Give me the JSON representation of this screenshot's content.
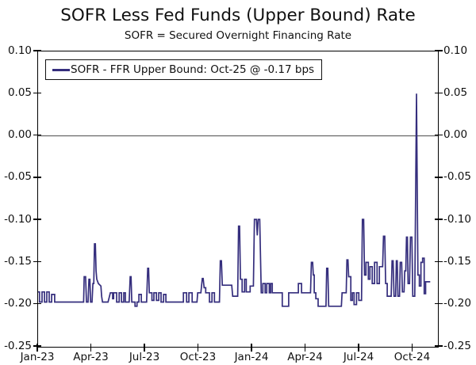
{
  "title": "SOFR Less Fed Funds (Upper Bound) Rate",
  "subtitle": "SOFR = Secured Overnight Financing Rate",
  "legend": {
    "label": "SOFR - FFR Upper Bound: Oct-25 @ -0.17 bps"
  },
  "colors": {
    "line": "#352e7d",
    "axis": "#000000",
    "zero_line": "#4a4a4a",
    "text": "#111111",
    "background": "#ffffff"
  },
  "chart_data": {
    "type": "line",
    "title": "SOFR Less Fed Funds (Upper Bound) Rate",
    "subtitle": "SOFR = Secured Overnight Financing Rate",
    "xlabel": "",
    "ylabel": "",
    "x_unit": "months since Jan-2023 (0 = Jan-23 tick)",
    "y_unit": "percentage points (SOFR minus FFR upper bound)",
    "xlim": [
      0,
      22.4
    ],
    "ylim": [
      -0.25,
      0.1
    ],
    "grid": "single horizontal gridline at 0.00 only",
    "legend_position": "top-left inside plot",
    "dual_y_axis": true,
    "xticks": [
      {
        "pos": 0,
        "label": "Jan-23"
      },
      {
        "pos": 3,
        "label": "Apr-23"
      },
      {
        "pos": 6,
        "label": "Jul-23"
      },
      {
        "pos": 9,
        "label": "Oct-23"
      },
      {
        "pos": 12,
        "label": "Jan-24"
      },
      {
        "pos": 15,
        "label": "Apr-24"
      },
      {
        "pos": 18,
        "label": "Jul-24"
      },
      {
        "pos": 21,
        "label": "Oct-24"
      }
    ],
    "yticks": [
      {
        "value": 0.1,
        "label": "0.10"
      },
      {
        "value": 0.05,
        "label": "0.05"
      },
      {
        "value": 0.0,
        "label": "0.00"
      },
      {
        "value": -0.05,
        "label": "-0.05"
      },
      {
        "value": -0.1,
        "label": "-0.10"
      },
      {
        "value": -0.15,
        "label": "-0.15"
      },
      {
        "value": -0.2,
        "label": "-0.20"
      },
      {
        "value": -0.25,
        "label": "-0.25"
      }
    ],
    "series": [
      {
        "name": "SOFR - FFR Upper Bound",
        "last_point_label": "Oct-25 @ -0.17 bps",
        "points": [
          [
            0.0,
            -0.185
          ],
          [
            0.08,
            -0.185
          ],
          [
            0.08,
            -0.197
          ],
          [
            0.22,
            -0.197
          ],
          [
            0.22,
            -0.185
          ],
          [
            0.36,
            -0.185
          ],
          [
            0.36,
            -0.197
          ],
          [
            0.49,
            -0.197
          ],
          [
            0.49,
            -0.185
          ],
          [
            0.62,
            -0.185
          ],
          [
            0.62,
            -0.197
          ],
          [
            0.76,
            -0.197
          ],
          [
            0.76,
            -0.188
          ],
          [
            0.93,
            -0.188
          ],
          [
            0.93,
            -0.197
          ],
          [
            2.55,
            -0.197
          ],
          [
            2.58,
            -0.167
          ],
          [
            2.66,
            -0.167
          ],
          [
            2.71,
            -0.197
          ],
          [
            2.8,
            -0.197
          ],
          [
            2.85,
            -0.17
          ],
          [
            2.9,
            -0.17
          ],
          [
            2.94,
            -0.197
          ],
          [
            3.02,
            -0.197
          ],
          [
            3.07,
            -0.175
          ],
          [
            3.12,
            -0.175
          ],
          [
            3.16,
            -0.128
          ],
          [
            3.21,
            -0.128
          ],
          [
            3.25,
            -0.16
          ],
          [
            3.29,
            -0.17
          ],
          [
            3.38,
            -0.175
          ],
          [
            3.52,
            -0.178
          ],
          [
            3.56,
            -0.19
          ],
          [
            3.61,
            -0.197
          ],
          [
            3.92,
            -0.197
          ],
          [
            4.05,
            -0.186
          ],
          [
            4.18,
            -0.186
          ],
          [
            4.18,
            -0.193
          ],
          [
            4.23,
            -0.193
          ],
          [
            4.23,
            -0.186
          ],
          [
            4.4,
            -0.186
          ],
          [
            4.4,
            -0.197
          ],
          [
            4.54,
            -0.197
          ],
          [
            4.54,
            -0.186
          ],
          [
            4.67,
            -0.186
          ],
          [
            4.67,
            -0.197
          ],
          [
            4.8,
            -0.197
          ],
          [
            4.8,
            -0.186
          ],
          [
            4.89,
            -0.186
          ],
          [
            4.89,
            -0.197
          ],
          [
            5.1,
            -0.197
          ],
          [
            5.16,
            -0.167
          ],
          [
            5.21,
            -0.167
          ],
          [
            5.25,
            -0.197
          ],
          [
            5.43,
            -0.197
          ],
          [
            5.43,
            -0.202
          ],
          [
            5.54,
            -0.202
          ],
          [
            5.54,
            -0.197
          ],
          [
            5.65,
            -0.197
          ],
          [
            5.65,
            -0.188
          ],
          [
            5.78,
            -0.188
          ],
          [
            5.78,
            -0.197
          ],
          [
            6.08,
            -0.197
          ],
          [
            6.14,
            -0.157
          ],
          [
            6.19,
            -0.157
          ],
          [
            6.23,
            -0.186
          ],
          [
            6.38,
            -0.186
          ],
          [
            6.38,
            -0.195
          ],
          [
            6.49,
            -0.195
          ],
          [
            6.49,
            -0.186
          ],
          [
            6.63,
            -0.186
          ],
          [
            6.63,
            -0.195
          ],
          [
            6.76,
            -0.195
          ],
          [
            6.76,
            -0.186
          ],
          [
            6.89,
            -0.186
          ],
          [
            6.89,
            -0.197
          ],
          [
            7.03,
            -0.197
          ],
          [
            7.03,
            -0.188
          ],
          [
            7.16,
            -0.188
          ],
          [
            7.16,
            -0.197
          ],
          [
            8.14,
            -0.197
          ],
          [
            8.14,
            -0.186
          ],
          [
            8.32,
            -0.186
          ],
          [
            8.32,
            -0.197
          ],
          [
            8.45,
            -0.197
          ],
          [
            8.45,
            -0.186
          ],
          [
            8.63,
            -0.186
          ],
          [
            8.63,
            -0.197
          ],
          [
            8.9,
            -0.197
          ],
          [
            8.94,
            -0.186
          ],
          [
            9.12,
            -0.186
          ],
          [
            9.2,
            -0.169
          ],
          [
            9.25,
            -0.169
          ],
          [
            9.3,
            -0.18
          ],
          [
            9.39,
            -0.18
          ],
          [
            9.39,
            -0.186
          ],
          [
            9.6,
            -0.186
          ],
          [
            9.6,
            -0.197
          ],
          [
            9.74,
            -0.197
          ],
          [
            9.74,
            -0.186
          ],
          [
            9.88,
            -0.186
          ],
          [
            9.88,
            -0.197
          ],
          [
            10.16,
            -0.197
          ],
          [
            10.21,
            -0.148
          ],
          [
            10.27,
            -0.148
          ],
          [
            10.32,
            -0.177
          ],
          [
            10.85,
            -0.177
          ],
          [
            10.9,
            -0.19
          ],
          [
            11.18,
            -0.19
          ],
          [
            11.23,
            -0.107
          ],
          [
            11.29,
            -0.107
          ],
          [
            11.34,
            -0.17
          ],
          [
            11.43,
            -0.17
          ],
          [
            11.43,
            -0.185
          ],
          [
            11.57,
            -0.185
          ],
          [
            11.57,
            -0.17
          ],
          [
            11.66,
            -0.17
          ],
          [
            11.66,
            -0.185
          ],
          [
            11.88,
            -0.185
          ],
          [
            11.88,
            -0.178
          ],
          [
            12.06,
            -0.178
          ],
          [
            12.12,
            -0.099
          ],
          [
            12.23,
            -0.099
          ],
          [
            12.28,
            -0.118
          ],
          [
            12.33,
            -0.099
          ],
          [
            12.42,
            -0.099
          ],
          [
            12.5,
            -0.186
          ],
          [
            12.59,
            -0.186
          ],
          [
            12.59,
            -0.175
          ],
          [
            12.72,
            -0.175
          ],
          [
            12.72,
            -0.186
          ],
          [
            12.81,
            -0.186
          ],
          [
            12.81,
            -0.175
          ],
          [
            12.95,
            -0.175
          ],
          [
            12.95,
            -0.186
          ],
          [
            13.03,
            -0.186
          ],
          [
            13.03,
            -0.175
          ],
          [
            13.12,
            -0.175
          ],
          [
            13.12,
            -0.186
          ],
          [
            13.68,
            -0.186
          ],
          [
            13.68,
            -0.202
          ],
          [
            14.04,
            -0.202
          ],
          [
            14.04,
            -0.186
          ],
          [
            14.58,
            -0.186
          ],
          [
            14.58,
            -0.175
          ],
          [
            14.76,
            -0.175
          ],
          [
            14.76,
            -0.186
          ],
          [
            15.26,
            -0.186
          ],
          [
            15.31,
            -0.15
          ],
          [
            15.38,
            -0.15
          ],
          [
            15.42,
            -0.165
          ],
          [
            15.47,
            -0.165
          ],
          [
            15.47,
            -0.186
          ],
          [
            15.56,
            -0.186
          ],
          [
            15.56,
            -0.193
          ],
          [
            15.69,
            -0.193
          ],
          [
            15.69,
            -0.202
          ],
          [
            16.13,
            -0.202
          ],
          [
            16.17,
            -0.157
          ],
          [
            16.23,
            -0.157
          ],
          [
            16.28,
            -0.202
          ],
          [
            16.99,
            -0.202
          ],
          [
            17.03,
            -0.186
          ],
          [
            17.26,
            -0.186
          ],
          [
            17.3,
            -0.147
          ],
          [
            17.36,
            -0.147
          ],
          [
            17.4,
            -0.167
          ],
          [
            17.52,
            -0.167
          ],
          [
            17.52,
            -0.195
          ],
          [
            17.61,
            -0.195
          ],
          [
            17.61,
            -0.186
          ],
          [
            17.7,
            -0.186
          ],
          [
            17.7,
            -0.2
          ],
          [
            17.84,
            -0.2
          ],
          [
            17.84,
            -0.186
          ],
          [
            17.97,
            -0.186
          ],
          [
            17.97,
            -0.195
          ],
          [
            18.12,
            -0.195
          ],
          [
            18.17,
            -0.099
          ],
          [
            18.24,
            -0.099
          ],
          [
            18.29,
            -0.165
          ],
          [
            18.37,
            -0.165
          ],
          [
            18.37,
            -0.15
          ],
          [
            18.5,
            -0.15
          ],
          [
            18.5,
            -0.17
          ],
          [
            18.59,
            -0.17
          ],
          [
            18.59,
            -0.155
          ],
          [
            18.72,
            -0.155
          ],
          [
            18.72,
            -0.175
          ],
          [
            18.85,
            -0.175
          ],
          [
            18.85,
            -0.15
          ],
          [
            18.99,
            -0.15
          ],
          [
            18.99,
            -0.175
          ],
          [
            19.12,
            -0.175
          ],
          [
            19.12,
            -0.155
          ],
          [
            19.3,
            -0.155
          ],
          [
            19.35,
            -0.119
          ],
          [
            19.42,
            -0.119
          ],
          [
            19.47,
            -0.175
          ],
          [
            19.56,
            -0.175
          ],
          [
            19.56,
            -0.19
          ],
          [
            19.78,
            -0.19
          ],
          [
            19.83,
            -0.148
          ],
          [
            19.89,
            -0.148
          ],
          [
            19.94,
            -0.19
          ],
          [
            20.03,
            -0.19
          ],
          [
            20.07,
            -0.148
          ],
          [
            20.12,
            -0.148
          ],
          [
            20.16,
            -0.19
          ],
          [
            20.25,
            -0.19
          ],
          [
            20.29,
            -0.15
          ],
          [
            20.37,
            -0.15
          ],
          [
            20.41,
            -0.185
          ],
          [
            20.5,
            -0.185
          ],
          [
            20.54,
            -0.16
          ],
          [
            20.6,
            -0.16
          ],
          [
            20.64,
            -0.12
          ],
          [
            20.69,
            -0.12
          ],
          [
            20.73,
            -0.175
          ],
          [
            20.81,
            -0.175
          ],
          [
            20.86,
            -0.12
          ],
          [
            20.94,
            -0.12
          ],
          [
            20.99,
            -0.19
          ],
          [
            21.1,
            -0.19
          ],
          [
            21.2,
            0.05
          ],
          [
            21.28,
            -0.165
          ],
          [
            21.36,
            -0.165
          ],
          [
            21.36,
            -0.178
          ],
          [
            21.45,
            -0.178
          ],
          [
            21.45,
            -0.15
          ],
          [
            21.54,
            -0.15
          ],
          [
            21.54,
            -0.145
          ],
          [
            21.63,
            -0.145
          ],
          [
            21.63,
            -0.187
          ],
          [
            21.71,
            -0.187
          ],
          [
            21.71,
            -0.173
          ],
          [
            21.97,
            -0.173
          ]
        ]
      }
    ]
  }
}
